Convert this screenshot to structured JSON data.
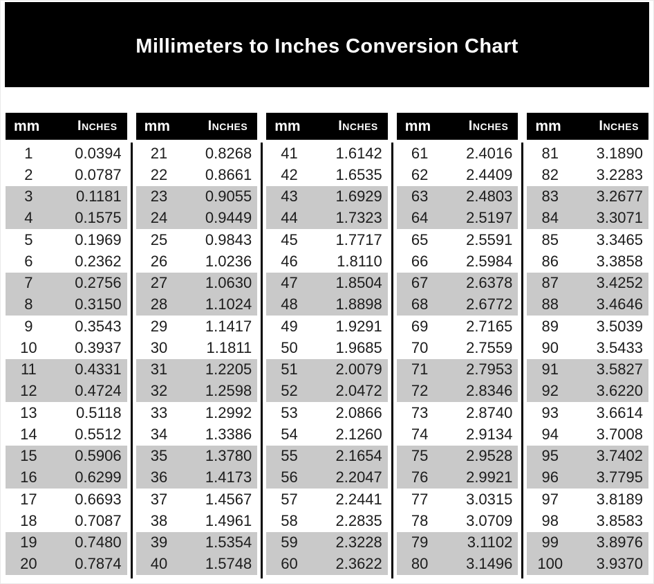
{
  "title": "Millimeters to Inches Conversion Chart",
  "table_header": {
    "mm_label": "mm",
    "inches_label": "Inches"
  },
  "colors": {
    "banner_bg": "#000000",
    "banner_text": "#ffffff",
    "header_bg": "#000000",
    "header_text": "#ffffff",
    "row_stripe": "#c9c9c9",
    "row_plain": "#ffffff",
    "body_text": "#1c1c1c",
    "divider": "#000000"
  },
  "chart_data": {
    "type": "table",
    "title": "Millimeters to Inches Conversion Chart",
    "columns": [
      "mm",
      "Inches"
    ],
    "layout": "5 side-by-side sub-tables of 20 rows, alternating white/gray pairs of rows, black vertical dividers between sub-tables",
    "tables": [
      {
        "name": "mm-1-20",
        "rows": [
          [
            1,
            "0.0394"
          ],
          [
            2,
            "0.0787"
          ],
          [
            3,
            "0.1181"
          ],
          [
            4,
            "0.1575"
          ],
          [
            5,
            "0.1969"
          ],
          [
            6,
            "0.2362"
          ],
          [
            7,
            "0.2756"
          ],
          [
            8,
            "0.3150"
          ],
          [
            9,
            "0.3543"
          ],
          [
            10,
            "0.3937"
          ],
          [
            11,
            "0.4331"
          ],
          [
            12,
            "0.4724"
          ],
          [
            13,
            "0.5118"
          ],
          [
            14,
            "0.5512"
          ],
          [
            15,
            "0.5906"
          ],
          [
            16,
            "0.6299"
          ],
          [
            17,
            "0.6693"
          ],
          [
            18,
            "0.7087"
          ],
          [
            19,
            "0.7480"
          ],
          [
            20,
            "0.7874"
          ]
        ]
      },
      {
        "name": "mm-21-40",
        "rows": [
          [
            21,
            "0.8268"
          ],
          [
            22,
            "0.8661"
          ],
          [
            23,
            "0.9055"
          ],
          [
            24,
            "0.9449"
          ],
          [
            25,
            "0.9843"
          ],
          [
            26,
            "1.0236"
          ],
          [
            27,
            "1.0630"
          ],
          [
            28,
            "1.1024"
          ],
          [
            29,
            "1.1417"
          ],
          [
            30,
            "1.1811"
          ],
          [
            31,
            "1.2205"
          ],
          [
            32,
            "1.2598"
          ],
          [
            33,
            "1.2992"
          ],
          [
            34,
            "1.3386"
          ],
          [
            35,
            "1.3780"
          ],
          [
            36,
            "1.4173"
          ],
          [
            37,
            "1.4567"
          ],
          [
            38,
            "1.4961"
          ],
          [
            39,
            "1.5354"
          ],
          [
            40,
            "1.5748"
          ]
        ]
      },
      {
        "name": "mm-41-60",
        "rows": [
          [
            41,
            "1.6142"
          ],
          [
            42,
            "1.6535"
          ],
          [
            43,
            "1.6929"
          ],
          [
            44,
            "1.7323"
          ],
          [
            45,
            "1.7717"
          ],
          [
            46,
            "1.8110"
          ],
          [
            47,
            "1.8504"
          ],
          [
            48,
            "1.8898"
          ],
          [
            49,
            "1.9291"
          ],
          [
            50,
            "1.9685"
          ],
          [
            51,
            "2.0079"
          ],
          [
            52,
            "2.0472"
          ],
          [
            53,
            "2.0866"
          ],
          [
            54,
            "2.1260"
          ],
          [
            55,
            "2.1654"
          ],
          [
            56,
            "2.2047"
          ],
          [
            57,
            "2.2441"
          ],
          [
            58,
            "2.2835"
          ],
          [
            59,
            "2.3228"
          ],
          [
            60,
            "2.3622"
          ]
        ]
      },
      {
        "name": "mm-61-80",
        "rows": [
          [
            61,
            "2.4016"
          ],
          [
            62,
            "2.4409"
          ],
          [
            63,
            "2.4803"
          ],
          [
            64,
            "2.5197"
          ],
          [
            65,
            "2.5591"
          ],
          [
            66,
            "2.5984"
          ],
          [
            67,
            "2.6378"
          ],
          [
            68,
            "2.6772"
          ],
          [
            69,
            "2.7165"
          ],
          [
            70,
            "2.7559"
          ],
          [
            71,
            "2.7953"
          ],
          [
            72,
            "2.8346"
          ],
          [
            73,
            "2.8740"
          ],
          [
            74,
            "2.9134"
          ],
          [
            75,
            "2.9528"
          ],
          [
            76,
            "2.9921"
          ],
          [
            77,
            "3.0315"
          ],
          [
            78,
            "3.0709"
          ],
          [
            79,
            "3.1102"
          ],
          [
            80,
            "3.1496"
          ]
        ]
      },
      {
        "name": "mm-81-100",
        "rows": [
          [
            81,
            "3.1890"
          ],
          [
            82,
            "3.2283"
          ],
          [
            83,
            "3.2677"
          ],
          [
            84,
            "3.3071"
          ],
          [
            85,
            "3.3465"
          ],
          [
            86,
            "3.3858"
          ],
          [
            87,
            "3.4252"
          ],
          [
            88,
            "3.4646"
          ],
          [
            89,
            "3.5039"
          ],
          [
            90,
            "3.5433"
          ],
          [
            91,
            "3.5827"
          ],
          [
            92,
            "3.6220"
          ],
          [
            93,
            "3.6614"
          ],
          [
            94,
            "3.7008"
          ],
          [
            95,
            "3.7402"
          ],
          [
            96,
            "3.7795"
          ],
          [
            97,
            "3.8189"
          ],
          [
            98,
            "3.8583"
          ],
          [
            99,
            "3.8976"
          ],
          [
            100,
            "3.9370"
          ]
        ]
      }
    ]
  }
}
